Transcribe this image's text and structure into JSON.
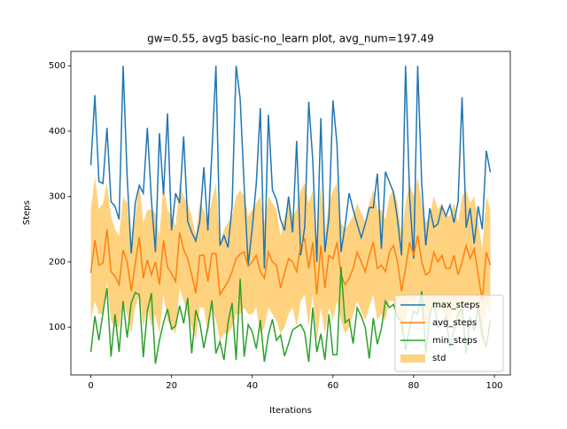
{
  "chart_data": {
    "type": "line",
    "title": "gw=0.55, avg5 basic-no_learn plot, avg_num=197.49",
    "x_label": "Iterations",
    "y_label": "Steps",
    "x": [
      0,
      1,
      2,
      3,
      4,
      5,
      6,
      7,
      8,
      9,
      10,
      11,
      12,
      13,
      14,
      15,
      16,
      17,
      18,
      19,
      20,
      21,
      22,
      23,
      24,
      25,
      26,
      27,
      28,
      29,
      30,
      31,
      32,
      33,
      34,
      35,
      36,
      37,
      38,
      39,
      40,
      41,
      42,
      43,
      44,
      45,
      46,
      47,
      48,
      49,
      50,
      51,
      52,
      53,
      54,
      55,
      56,
      57,
      58,
      59,
      60,
      61,
      62,
      63,
      64,
      65,
      66,
      67,
      68,
      69,
      70,
      71,
      72,
      73,
      74,
      75,
      76,
      77,
      78,
      79,
      80,
      81,
      82,
      83,
      84,
      85,
      86,
      87,
      88,
      89,
      90,
      91,
      92,
      93,
      94,
      95,
      96,
      97,
      98,
      99
    ],
    "xlim": [
      -4.95,
      103.95
    ],
    "xticks": [
      0,
      20,
      40,
      60,
      80,
      100
    ],
    "ylim": [
      27,
      522
    ],
    "yticks": [
      100,
      200,
      300,
      400,
      500
    ],
    "legend": "lower right",
    "series": [
      {
        "name": "max_steps",
        "color": "#1f77b4",
        "values": [
          348,
          455,
          323,
          320,
          405,
          292,
          285,
          265,
          500,
          330,
          213,
          290,
          317,
          305,
          405,
          295,
          215,
          397,
          303,
          427,
          248,
          305,
          290,
          392,
          262,
          245,
          232,
          262,
          345,
          248,
          367,
          500,
          225,
          240,
          222,
          285,
          500,
          450,
          315,
          195,
          252,
          320,
          435,
          190,
          425,
          310,
          295,
          265,
          248,
          300,
          245,
          385,
          210,
          253,
          445,
          355,
          200,
          420,
          215,
          267,
          447,
          380,
          215,
          255,
          305,
          280,
          258,
          237,
          258,
          283,
          283,
          335,
          220,
          338,
          322,
          307,
          265,
          210,
          500,
          300,
          205,
          500,
          320,
          225,
          282,
          253,
          258,
          285,
          270,
          287,
          260,
          292,
          452,
          252,
          282,
          228,
          285,
          250,
          370,
          337
        ]
      },
      {
        "name": "avg_steps",
        "color": "#ff7f0e",
        "values": [
          183,
          233,
          195,
          198,
          250,
          185,
          178,
          165,
          218,
          200,
          155,
          197,
          238,
          175,
          203,
          180,
          200,
          165,
          233,
          192,
          182,
          170,
          245,
          219,
          205,
          180,
          152,
          210,
          210,
          170,
          213,
          213,
          150,
          160,
          170,
          185,
          205,
          212,
          215,
          193,
          200,
          210,
          185,
          175,
          215,
          200,
          195,
          160,
          183,
          205,
          200,
          185,
          225,
          235,
          190,
          230,
          150,
          225,
          160,
          210,
          205,
          230,
          180,
          165,
          175,
          190,
          215,
          200,
          185,
          210,
          230,
          190,
          195,
          185,
          215,
          225,
          200,
          155,
          190,
          230,
          210,
          240,
          200,
          180,
          185,
          215,
          200,
          210,
          190,
          190,
          210,
          180,
          200,
          225,
          205,
          220,
          180,
          140,
          215,
          195
        ]
      },
      {
        "name": "min_steps",
        "color": "#2ca02c",
        "values": [
          62,
          117,
          80,
          122,
          160,
          55,
          120,
          62,
          140,
          84,
          137,
          153,
          150,
          54,
          125,
          152,
          44,
          80,
          107,
          128,
          97,
          102,
          133,
          106,
          145,
          60,
          126,
          107,
          68,
          100,
          141,
          60,
          78,
          50,
          107,
          137,
          50,
          174,
          55,
          104,
          93,
          67,
          111,
          47,
          88,
          112,
          80,
          88,
          56,
          75,
          96,
          100,
          104,
          92,
          47,
          130,
          62,
          90,
          50,
          120,
          58,
          58,
          192,
          107,
          112,
          75,
          130,
          117,
          100,
          52,
          114,
          74,
          98,
          140,
          130,
          135,
          115,
          110,
          65,
          100,
          125,
          120,
          155,
          60,
          120,
          140,
          100,
          105,
          115,
          70,
          95,
          120,
          130,
          60,
          115,
          95,
          130,
          90,
          70,
          110
        ]
      },
      {
        "name": "std",
        "color": "#ffa500",
        "alpha": 0.5,
        "upper": [
          280,
          330,
          280,
          290,
          320,
          270,
          250,
          240,
          300,
          290,
          220,
          270,
          320,
          260,
          280,
          280,
          275,
          240,
          320,
          280,
          270,
          255,
          320,
          300,
          290,
          270,
          240,
          290,
          280,
          260,
          295,
          320,
          230,
          250,
          260,
          270,
          300,
          310,
          300,
          270,
          280,
          290,
          300,
          260,
          300,
          290,
          280,
          240,
          270,
          290,
          270,
          280,
          310,
          320,
          290,
          310,
          230,
          320,
          240,
          290,
          310,
          320,
          260,
          250,
          260,
          270,
          290,
          275,
          260,
          290,
          310,
          280,
          280,
          265,
          300,
          310,
          290,
          240,
          290,
          320,
          300,
          330,
          290,
          260,
          270,
          300,
          280,
          290,
          270,
          270,
          290,
          260,
          300,
          310,
          290,
          300,
          260,
          220,
          300,
          280
        ],
        "lower": [
          110,
          140,
          120,
          120,
          170,
          110,
          100,
          100,
          140,
          120,
          90,
          130,
          150,
          100,
          130,
          100,
          120,
          90,
          150,
          110,
          100,
          90,
          160,
          140,
          120,
          100,
          80,
          130,
          130,
          90,
          130,
          110,
          80,
          90,
          90,
          100,
          120,
          120,
          130,
          120,
          120,
          130,
          90,
          100,
          130,
          120,
          110,
          90,
          100,
          120,
          130,
          100,
          140,
          150,
          100,
          150,
          80,
          130,
          90,
          130,
          110,
          140,
          110,
          90,
          100,
          120,
          140,
          125,
          110,
          130,
          150,
          110,
          120,
          110,
          140,
          140,
          120,
          80,
          110,
          140,
          130,
          150,
          110,
          100,
          110,
          140,
          120,
          130,
          110,
          110,
          130,
          100,
          110,
          140,
          120,
          140,
          110,
          70,
          130,
          120
        ]
      }
    ]
  }
}
